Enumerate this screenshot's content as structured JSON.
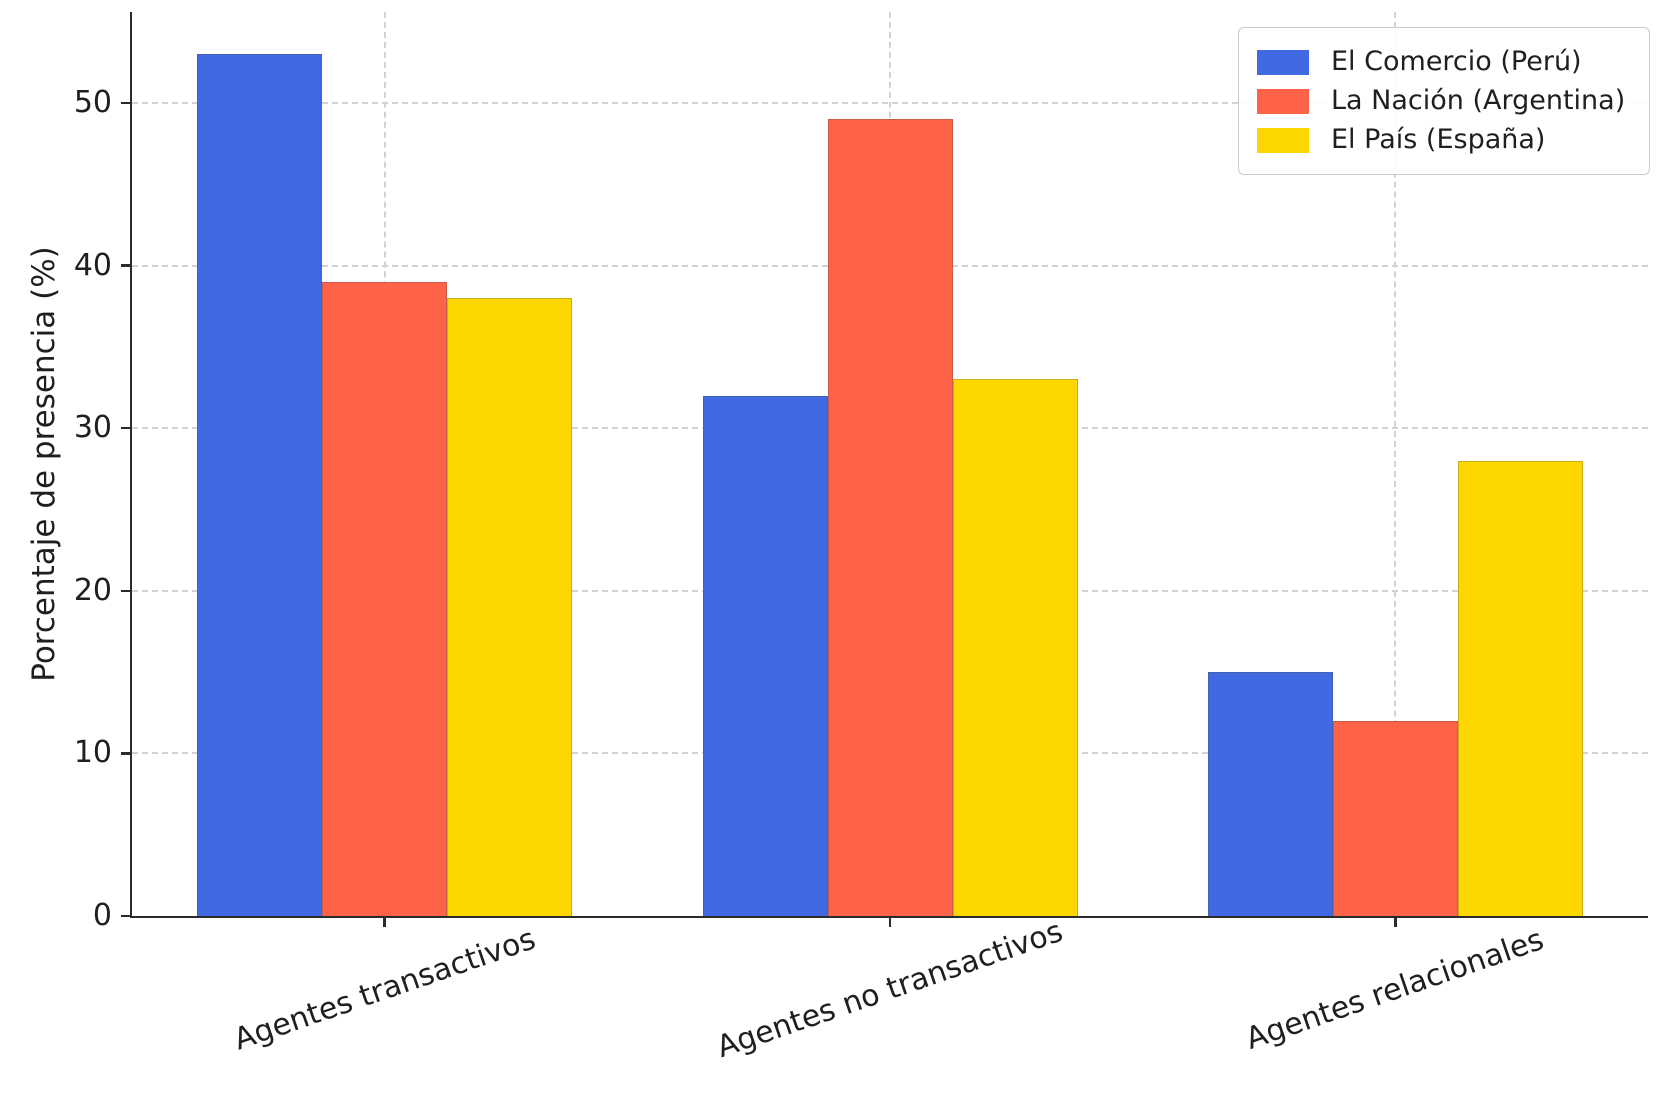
{
  "chart_data": {
    "type": "bar",
    "title": "",
    "xlabel": "",
    "ylabel": "Porcentaje de presencia (%)",
    "categories": [
      "Agentes transactivos",
      "Agentes no transactivos",
      "Agentes relacionales"
    ],
    "series": [
      {
        "name": "El Comercio (Perú)",
        "color": "#4169E1",
        "values": [
          53,
          32,
          15
        ]
      },
      {
        "name": "La Nación (Argentina)",
        "color": "#FF6347",
        "values": [
          39,
          49,
          12
        ]
      },
      {
        "name": "El País (España)",
        "color": "#FFD700",
        "values": [
          38,
          33,
          28
        ]
      }
    ],
    "yticks": [
      0,
      10,
      20,
      30,
      40,
      50
    ],
    "ylim": [
      0,
      55.6
    ],
    "grid": true,
    "grid_style": "dashed",
    "legend_position": "upper right",
    "colors": {
      "grid": "#d2d2d2",
      "axis": "#2b2b2b",
      "text": "#1f1f1f",
      "background": "#ffffff"
    }
  }
}
